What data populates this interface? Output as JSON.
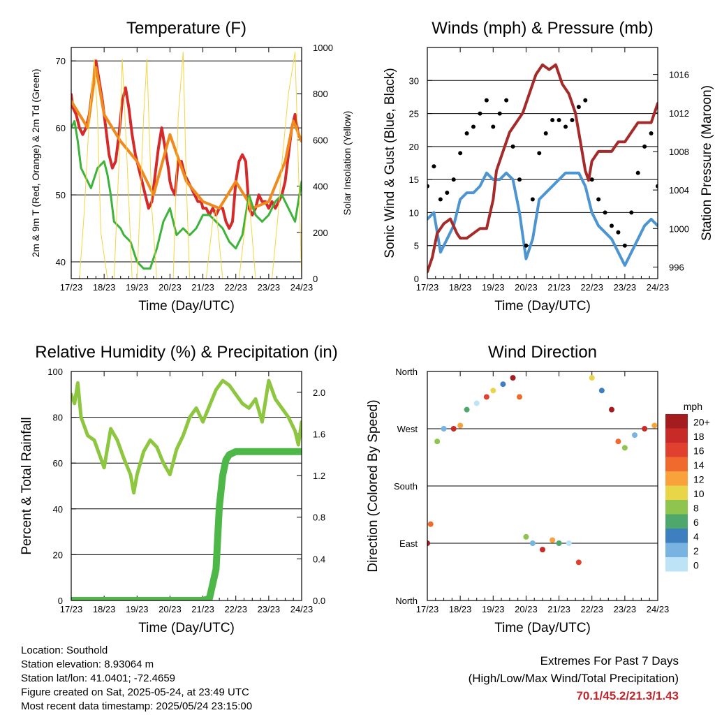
{
  "chart_data": [
    {
      "type": "line",
      "title": "Temperature (F)",
      "xlabel": "Time (Day/UTC)",
      "ylabel": "2m & 9m T (Red, Orange) & 2m Td (Green)",
      "ylabel_right": "Solar Insolation (Yellow)",
      "x_ticks": [
        "17/23",
        "18/23",
        "19/23",
        "20/23",
        "21/23",
        "22/23",
        "23/23",
        "24/23"
      ],
      "ylim": [
        37.5,
        72
      ],
      "y_ticks": [
        40,
        50,
        60,
        70
      ],
      "ylim_right": [
        0,
        1000
      ],
      "y_ticks_right": [
        0,
        200,
        400,
        600,
        800,
        1000
      ],
      "grid": true,
      "series": [
        {
          "name": "2m T",
          "color": "#d42a2a",
          "x": [
            0,
            0.05,
            0.15,
            0.25,
            0.35,
            0.45,
            0.55,
            0.65,
            0.75,
            0.85,
            0.95,
            1.0,
            1.05,
            1.15,
            1.25,
            1.35,
            1.45,
            1.55,
            1.65,
            1.75,
            1.85,
            1.95,
            2.0,
            2.05,
            2.15,
            2.25,
            2.35,
            2.45,
            2.55,
            2.65,
            2.75,
            2.85,
            2.95,
            3.0,
            3.05,
            3.15,
            3.25,
            3.35,
            3.45,
            3.55,
            3.65,
            3.75,
            3.85,
            3.95,
            4.0,
            4.1,
            4.2,
            4.3,
            4.4,
            4.5,
            4.6,
            4.7,
            4.8,
            4.9,
            5.0,
            5.1,
            5.2,
            5.3,
            5.4,
            5.5,
            5.6,
            5.7,
            5.8,
            5.9,
            6.0,
            6.1,
            6.2,
            6.3,
            6.4,
            6.5,
            6.6,
            6.7,
            6.8,
            6.9,
            7.0
          ],
          "y": [
            65,
            63,
            62,
            60,
            59,
            60,
            62,
            66,
            70,
            67,
            64,
            62,
            60,
            56,
            54,
            55,
            59,
            64,
            66,
            63,
            59,
            56,
            55,
            54,
            52,
            50,
            48,
            49,
            53,
            57,
            60,
            57,
            54,
            52,
            51,
            50,
            55,
            55,
            53,
            52,
            51,
            50,
            49,
            49,
            48,
            48,
            47,
            48,
            47,
            48,
            48,
            46,
            45,
            46,
            52,
            55,
            56,
            55,
            48,
            47,
            48,
            50,
            49,
            49,
            48,
            49,
            48,
            49,
            50,
            52,
            56,
            60,
            62,
            59,
            58
          ]
        },
        {
          "name": "9m T",
          "color": "#f08a1e",
          "x": [
            0,
            0.5,
            0.75,
            1.0,
            1.5,
            2.0,
            2.5,
            3.0,
            3.5,
            4.0,
            4.5,
            5.0,
            5.5,
            6.0,
            6.5,
            6.75,
            7.0
          ],
          "y": [
            64,
            60,
            69,
            62,
            58,
            55,
            50,
            59,
            52,
            49,
            48,
            52,
            48,
            49,
            55,
            61,
            58
          ]
        },
        {
          "name": "2m Td",
          "color": "#3db33a",
          "x": [
            0,
            0.1,
            0.2,
            0.3,
            0.5,
            0.6,
            0.8,
            1.0,
            1.1,
            1.2,
            1.3,
            1.5,
            1.6,
            1.8,
            2.0,
            2.2,
            2.4,
            2.6,
            2.8,
            3.0,
            3.2,
            3.4,
            3.6,
            3.8,
            4.0,
            4.2,
            4.4,
            4.6,
            4.8,
            5.0,
            5.2,
            5.4,
            5.6,
            5.8,
            6.0,
            6.2,
            6.4,
            6.6,
            6.8,
            7.0
          ],
          "y": [
            60,
            61,
            58,
            54,
            52,
            51,
            54,
            55,
            53,
            50,
            46,
            45,
            44,
            43,
            40,
            39,
            39,
            42,
            46,
            48,
            44,
            45,
            44,
            45,
            47,
            47,
            46,
            45,
            43,
            42,
            44,
            50,
            47,
            46,
            47,
            49,
            50,
            48,
            46,
            52
          ]
        },
        {
          "name": "Solar Insolation",
          "axis": "right",
          "color": "#f5d442",
          "x": [
            0.0,
            0.1,
            0.25,
            0.4,
            0.55,
            0.7,
            0.8,
            0.9,
            1.1,
            1.3,
            1.45,
            1.55,
            1.7,
            1.85,
            2.0,
            2.2,
            2.3,
            2.45,
            2.6,
            2.7,
            2.9,
            3.1,
            3.25,
            3.4,
            3.5,
            3.6,
            3.8,
            4.1,
            4.3,
            4.4,
            4.6,
            5.1,
            5.3,
            5.4,
            5.6,
            5.8,
            6.1,
            6.3,
            6.4,
            6.6,
            6.8,
            7.0
          ],
          "y": [
            0,
            0,
            0,
            300,
            700,
            950,
            700,
            200,
            0,
            0,
            500,
            950,
            500,
            0,
            0,
            700,
            950,
            300,
            0,
            0,
            0,
            0,
            700,
            980,
            400,
            0,
            0,
            0,
            250,
            300,
            0,
            0,
            250,
            350,
            0,
            0,
            0,
            300,
            500,
            800,
            980,
            0
          ]
        }
      ]
    },
    {
      "type": "line",
      "title": "Winds (mph) & Pressure (mb)",
      "xlabel": "Time (Day/UTC)",
      "ylabel": "Sonic Wind & Gust (Blue, Black)",
      "ylabel_right": "Station Pressure (Maroon)",
      "x_ticks": [
        "17/23",
        "18/23",
        "19/23",
        "20/23",
        "21/23",
        "22/23",
        "23/23",
        "24/23"
      ],
      "ylim": [
        0,
        35
      ],
      "y_ticks": [
        0,
        5,
        10,
        15,
        20,
        25,
        30
      ],
      "ylim_right": [
        994.8,
        1018.8
      ],
      "y_ticks_right": [
        996,
        1000,
        1004,
        1008,
        1012,
        1016
      ],
      "grid": true,
      "series": [
        {
          "name": "Sonic Wind",
          "color": "#4d95d1",
          "x": [
            0,
            0.2,
            0.4,
            0.6,
            0.8,
            1.0,
            1.2,
            1.4,
            1.6,
            1.8,
            2.0,
            2.2,
            2.4,
            2.6,
            2.8,
            3.0,
            3.2,
            3.4,
            3.6,
            3.8,
            4.0,
            4.2,
            4.4,
            4.6,
            4.8,
            5.0,
            5.2,
            5.4,
            5.6,
            5.8,
            6.0,
            6.2,
            6.4,
            6.6,
            6.8,
            7.0
          ],
          "y": [
            9,
            10,
            4,
            6,
            8,
            12,
            13,
            13,
            14,
            16,
            15,
            15,
            16,
            15,
            10,
            3,
            6,
            12,
            13,
            14,
            15,
            16,
            16,
            16,
            14,
            10,
            8,
            7,
            6,
            4,
            2,
            4,
            6,
            8,
            9,
            8
          ]
        },
        {
          "name": "Gust",
          "color": "#000000",
          "x": [
            0,
            0.2,
            0.4,
            0.6,
            0.8,
            1.0,
            1.2,
            1.4,
            1.6,
            1.8,
            2.0,
            2.2,
            2.4,
            2.6,
            2.8,
            3.0,
            3.2,
            3.4,
            3.6,
            3.8,
            4.0,
            4.2,
            4.4,
            4.6,
            4.8,
            5.0,
            5.2,
            5.4,
            5.6,
            5.8,
            6.0,
            6.2,
            6.4,
            6.6,
            6.8,
            7.0
          ],
          "y": [
            14,
            17,
            12,
            13,
            15,
            19,
            22,
            23,
            25,
            27,
            23,
            25,
            27,
            20,
            15,
            5,
            12,
            19,
            22,
            24,
            24,
            23,
            24,
            26,
            27,
            15,
            12,
            10,
            8,
            7,
            5,
            10,
            16,
            20,
            22,
            14
          ]
        },
        {
          "name": "Station Pressure",
          "axis": "right",
          "color": "#a52a2a",
          "x": [
            0,
            0.15,
            0.3,
            0.5,
            0.7,
            0.9,
            1.0,
            1.2,
            1.4,
            1.6,
            1.8,
            2.0,
            2.1,
            2.3,
            2.5,
            2.7,
            2.9,
            3.1,
            3.3,
            3.5,
            3.7,
            3.9,
            4.1,
            4.3,
            4.5,
            4.6,
            4.7,
            4.8,
            4.9,
            5.0,
            5.2,
            5.4,
            5.6,
            5.8,
            6.0,
            6.2,
            6.4,
            6.6,
            6.8,
            7.0
          ],
          "y": [
            995.5,
            997,
            999.5,
            1000.5,
            1001,
            999.5,
            999,
            999,
            999.5,
            1000,
            1000,
            1003,
            1006,
            1008,
            1010,
            1011,
            1012,
            1014,
            1016,
            1017,
            1016.5,
            1017,
            1015,
            1014,
            1012,
            1010,
            1008,
            1006,
            1005,
            1007,
            1008,
            1008,
            1008,
            1009,
            1009,
            1010,
            1011,
            1011,
            1011,
            1013
          ]
        }
      ]
    },
    {
      "type": "line",
      "title": "Relative Humidity (%) & Precipitation (in)",
      "xlabel": "Time (Day/UTC)",
      "ylabel": "Percent & Total Rainfall",
      "x_ticks": [
        "17/23",
        "18/23",
        "19/23",
        "20/23",
        "21/23",
        "22/23",
        "23/23",
        "24/23"
      ],
      "ylim": [
        0,
        100
      ],
      "y_ticks": [
        0,
        20,
        40,
        60,
        80,
        100
      ],
      "ylim_right": [
        0,
        2.2
      ],
      "y_ticks_right": [
        "0.0",
        "0.4",
        "0.8",
        "1.2",
        "1.6",
        "2.0"
      ],
      "grid": true,
      "series": [
        {
          "name": "Relative Humidity",
          "color": "#8dc63f",
          "x": [
            0,
            0.1,
            0.2,
            0.3,
            0.4,
            0.5,
            0.7,
            0.9,
            1.0,
            1.2,
            1.4,
            1.6,
            1.8,
            1.9,
            2.0,
            2.2,
            2.4,
            2.6,
            2.8,
            3.0,
            3.2,
            3.4,
            3.6,
            3.8,
            4.0,
            4.2,
            4.4,
            4.6,
            4.8,
            5.0,
            5.2,
            5.4,
            5.6,
            5.8,
            6.0,
            6.2,
            6.4,
            6.6,
            6.8,
            6.9,
            7.0
          ],
          "y": [
            90,
            86,
            95,
            80,
            76,
            72,
            70,
            62,
            58,
            75,
            70,
            62,
            55,
            47,
            55,
            65,
            70,
            67,
            60,
            55,
            66,
            72,
            80,
            84,
            78,
            85,
            92,
            96,
            94,
            90,
            86,
            84,
            88,
            78,
            96,
            88,
            84,
            80,
            74,
            68,
            78
          ]
        },
        {
          "name": "Total Precipitation",
          "axis": "right",
          "color": "#4db848",
          "x": [
            0,
            4.0,
            4.2,
            4.4,
            4.5,
            4.6,
            4.7,
            4.8,
            5.0,
            7.0
          ],
          "y": [
            0,
            0,
            0.02,
            0.3,
            0.9,
            1.2,
            1.35,
            1.4,
            1.43,
            1.43
          ]
        }
      ]
    },
    {
      "type": "scatter",
      "title": "Wind Direction",
      "xlabel": "Time (Day/UTC)",
      "ylabel": "Direction (Colored By Speed)",
      "x_ticks": [
        "17/23",
        "18/23",
        "19/23",
        "20/23",
        "21/23",
        "22/23",
        "23/23",
        "24/23"
      ],
      "y_ticks": [
        "North",
        "East",
        "South",
        "West",
        "North"
      ],
      "ylim": [
        0,
        360
      ],
      "grid": true,
      "legend_title": "mph",
      "legend_labels": [
        "20+",
        "18",
        "16",
        "14",
        "12",
        "10",
        "8",
        "6",
        "4",
        "2",
        "0"
      ],
      "legend_colors": [
        "#a51c1f",
        "#c82b27",
        "#e2402e",
        "#f06a2d",
        "#f9a23c",
        "#e9d648",
        "#8fc54e",
        "#4ea86b",
        "#3d7fbf",
        "#79b3e2",
        "#bde3f7"
      ],
      "points": [
        {
          "x": 0,
          "y": 90
        },
        {
          "x": 0.1,
          "y": 120
        },
        {
          "x": 0.3,
          "y": 250
        },
        {
          "x": 0.5,
          "y": 270
        },
        {
          "x": 0.8,
          "y": 270
        },
        {
          "x": 1.0,
          "y": 275
        },
        {
          "x": 1.2,
          "y": 300
        },
        {
          "x": 1.5,
          "y": 310
        },
        {
          "x": 1.8,
          "y": 320
        },
        {
          "x": 2.0,
          "y": 330
        },
        {
          "x": 2.3,
          "y": 340
        },
        {
          "x": 2.6,
          "y": 350
        },
        {
          "x": 2.8,
          "y": 320
        },
        {
          "x": 3.0,
          "y": 100
        },
        {
          "x": 3.2,
          "y": 90
        },
        {
          "x": 3.5,
          "y": 80
        },
        {
          "x": 3.8,
          "y": 95
        },
        {
          "x": 4.0,
          "y": 90
        },
        {
          "x": 4.3,
          "y": 90
        },
        {
          "x": 4.6,
          "y": 60
        },
        {
          "x": 5.0,
          "y": 350
        },
        {
          "x": 5.3,
          "y": 330
        },
        {
          "x": 5.6,
          "y": 300
        },
        {
          "x": 5.8,
          "y": 250
        },
        {
          "x": 6.0,
          "y": 240
        },
        {
          "x": 6.3,
          "y": 260
        },
        {
          "x": 6.6,
          "y": 270
        },
        {
          "x": 6.9,
          "y": 275
        }
      ]
    }
  ],
  "info": {
    "location": "Location: Southold",
    "elevation": "Station elevation: 8.93064 m",
    "latlon": "Station lat/lon: 41.0401; -72.4659",
    "created": "Figure created on Sat, 2025-05-24, at 23:49 UTC",
    "timestamp": "Most recent data timestamp: 2025/05/24 23:15:00"
  },
  "extremes": {
    "line1": "Extremes For Past 7 Days",
    "line2": "(High/Low/Max Wind/Total Precipitation)",
    "values": "70.1/45.2/21.3/1.43"
  }
}
